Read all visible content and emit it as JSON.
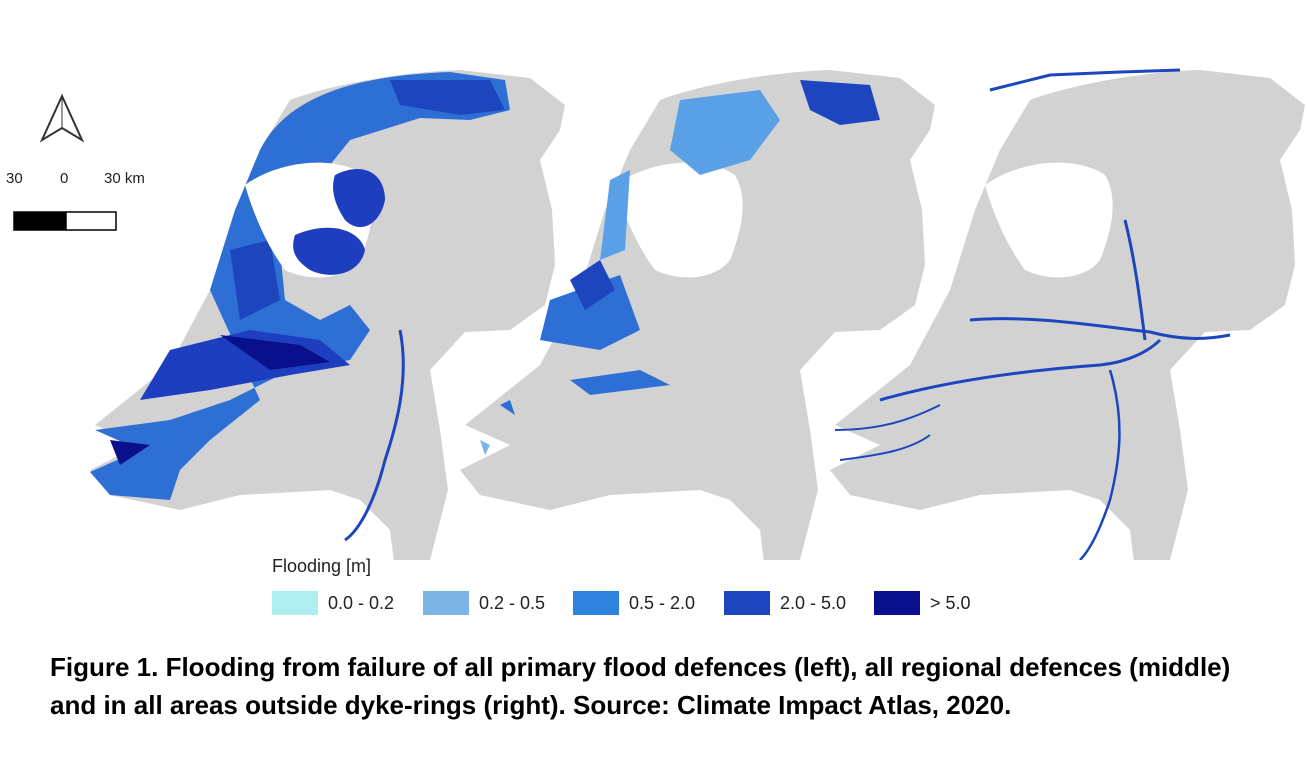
{
  "scale_bar": {
    "labels": [
      "30",
      "0",
      "30 km"
    ]
  },
  "north_arrow": {
    "icon": "north-arrow-icon"
  },
  "legend": {
    "title": "Flooding [m]",
    "items": [
      {
        "label": "0.0 - 0.2",
        "color": "#aeeef0"
      },
      {
        "label": "0.2 - 0.5",
        "color": "#7db4e6"
      },
      {
        "label": "0.5 - 2.0",
        "color": "#2e84dc"
      },
      {
        "label": "2.0 - 5.0",
        "color": "#1d46be"
      },
      {
        "label": "> 5.0",
        "color": "#0a0f8c"
      }
    ]
  },
  "colors": {
    "land": "#d2d2d2",
    "lake": "#ffffff"
  },
  "caption": "Figure 1. Flooding from failure of all primary flood defences (left), all regional defences (middle) and in all areas outside dyke-rings (right). Source: Climate Impact Atlas, 2020."
}
